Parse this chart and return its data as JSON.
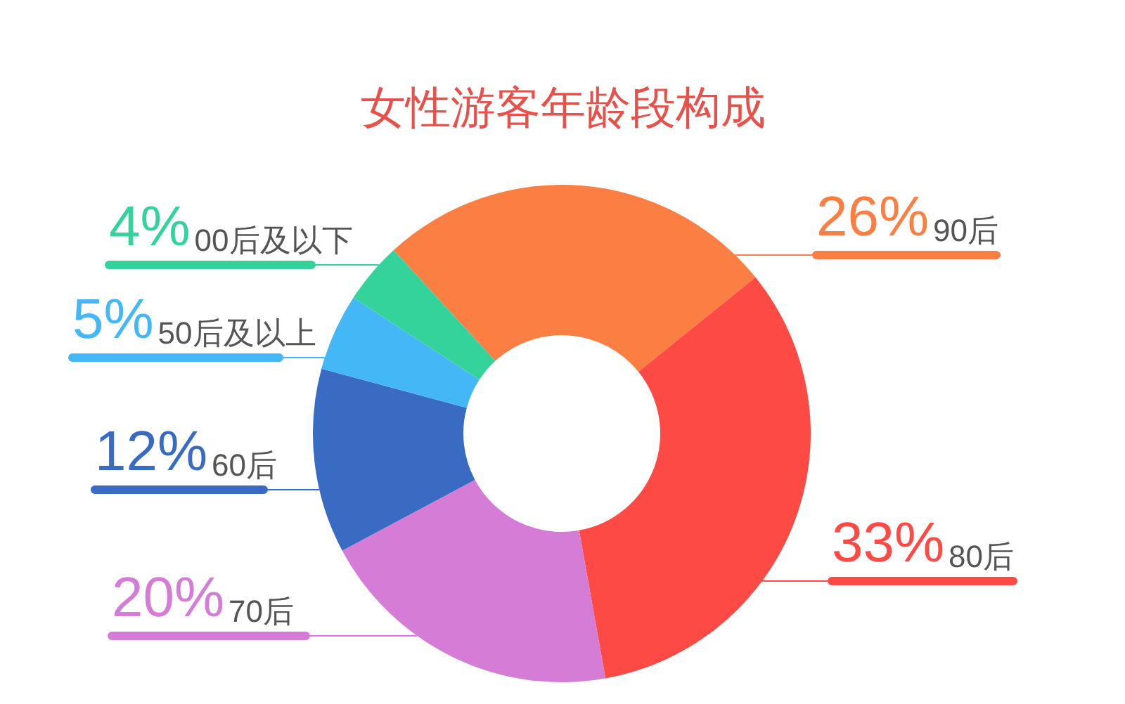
{
  "chart_data": {
    "type": "donut",
    "title": "女性游客年龄段构成",
    "categories": [
      "90后",
      "80后",
      "70后",
      "60后",
      "50后及以上",
      "00后及以下"
    ],
    "values": [
      26,
      33,
      20,
      12,
      5,
      4
    ],
    "colors": [
      "#fb7f43",
      "#fe4a45",
      "#d47cd6",
      "#3a6bc3",
      "#44b7f7",
      "#35d39c"
    ],
    "value_labels": [
      "26%",
      "33%",
      "20%",
      "12%",
      "5%",
      "4%"
    ]
  }
}
